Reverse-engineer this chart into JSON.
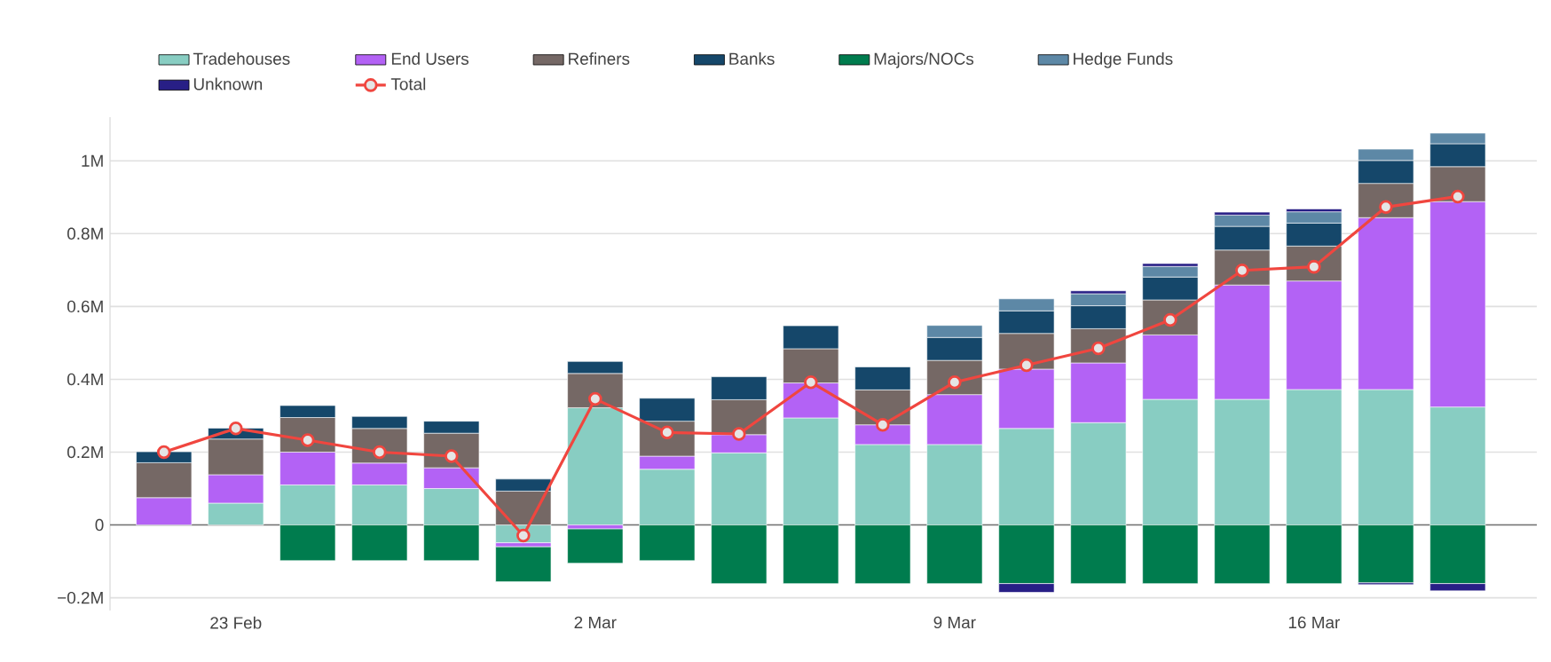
{
  "chart_data": {
    "type": "bar",
    "stacked": true,
    "legend": "top",
    "grid": "y",
    "categories": [
      null,
      "23 Feb",
      null,
      null,
      null,
      null,
      "2 Mar",
      null,
      null,
      null,
      null,
      "9 Mar",
      null,
      null,
      null,
      null,
      "16 Mar",
      null,
      null
    ],
    "ylim": [
      -0.235,
      1.12
    ],
    "yticks": [
      {
        "value": -0.2,
        "label": "−0.2M"
      },
      0,
      {
        "value": 0.2,
        "label": "0.2M"
      },
      {
        "value": 0.4,
        "label": "0.4M"
      },
      {
        "value": 0.6,
        "label": "0.6M"
      },
      {
        "value": 0.8,
        "label": "0.8M"
      },
      {
        "value": 1,
        "label": "1M"
      }
    ],
    "series": [
      {
        "name": "Tradehouses",
        "color": "#88cdc2",
        "values": [
          null,
          0.06,
          0.11,
          0.11,
          0.1,
          -0.049,
          0.322,
          0.153,
          0.198,
          0.294,
          0.221,
          0.221,
          0.265,
          0.281,
          0.345,
          0.345,
          0.372,
          0.372,
          0.324
        ]
      },
      {
        "name": "End Users",
        "color": "#b362f5",
        "values": [
          0.075,
          0.078,
          0.09,
          0.06,
          0.057,
          -0.011,
          -0.011,
          0.036,
          0.05,
          0.096,
          0.054,
          0.137,
          0.163,
          0.164,
          0.177,
          0.314,
          0.298,
          0.472,
          0.564
        ]
      },
      {
        "name": "Refiners",
        "color": "#756865",
        "values": [
          0.096,
          0.098,
          0.095,
          0.095,
          0.095,
          0.093,
          0.094,
          0.096,
          0.096,
          0.094,
          0.096,
          0.094,
          0.098,
          0.094,
          0.096,
          0.096,
          0.096,
          0.094,
          0.096
        ]
      },
      {
        "name": "Banks",
        "color": "#15476a",
        "values": [
          0.03,
          0.03,
          0.033,
          0.033,
          0.033,
          0.033,
          0.033,
          0.063,
          0.063,
          0.063,
          0.063,
          0.063,
          0.062,
          0.063,
          0.063,
          0.065,
          0.063,
          0.063,
          0.063
        ]
      },
      {
        "name": "Majors/NOCs",
        "color": "#007c4e",
        "values": [
          null,
          null,
          -0.098,
          -0.098,
          -0.098,
          -0.096,
          -0.094,
          -0.098,
          -0.161,
          -0.161,
          -0.161,
          -0.161,
          -0.161,
          -0.161,
          -0.161,
          -0.161,
          -0.161,
          -0.159,
          -0.161
        ]
      },
      {
        "name": "Hedge Funds",
        "color": "#5d88a6",
        "values": [
          null,
          null,
          null,
          null,
          null,
          null,
          null,
          null,
          null,
          null,
          null,
          0.033,
          0.033,
          0.033,
          0.029,
          0.031,
          0.031,
          0.031,
          0.029
        ]
      },
      {
        "name": "Unknown",
        "color": "#281f86",
        "values": [
          null,
          null,
          null,
          null,
          null,
          null,
          null,
          null,
          null,
          null,
          null,
          null,
          -0.024,
          0.008,
          0.008,
          0.008,
          0.008,
          -0.005,
          -0.02
        ]
      },
      {
        "name": "Total",
        "type": "line",
        "marker": "circle",
        "line_style": "solid",
        "color": "#f0463f",
        "values": [
          0.2,
          0.265,
          0.233,
          0.2,
          0.189,
          -0.029,
          0.346,
          0.254,
          0.25,
          0.392,
          0.275,
          0.392,
          0.439,
          0.485,
          0.563,
          0.699,
          0.709,
          0.873,
          0.902
        ]
      }
    ]
  }
}
